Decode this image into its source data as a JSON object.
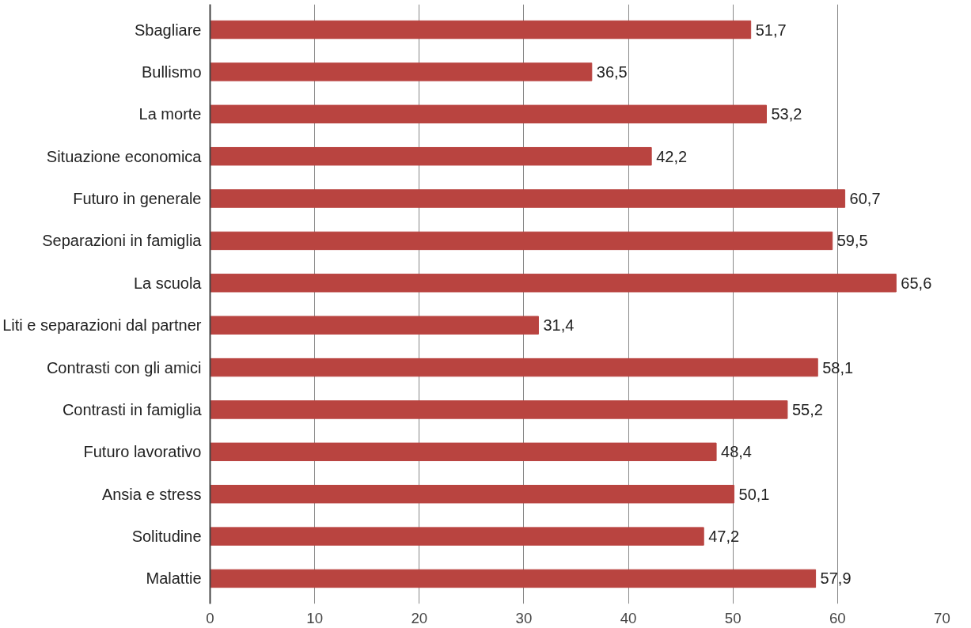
{
  "chart_data": {
    "type": "bar",
    "orientation": "horizontal",
    "categories": [
      "Sbagliare",
      "Bullismo",
      "La morte",
      "Situazione economica",
      "Futuro in generale",
      "Separazioni in famiglia",
      "La scuola",
      "Liti e separazioni dal partner",
      "Contrasti con gli amici",
      "Contrasti in famiglia",
      "Futuro lavorativo",
      "Ansia e stress",
      "Solitudine",
      "Malattie"
    ],
    "values": [
      51.7,
      36.5,
      53.2,
      42.2,
      60.7,
      59.5,
      65.6,
      31.4,
      58.1,
      55.2,
      48.4,
      50.1,
      47.2,
      57.9
    ],
    "value_labels": [
      "51,7",
      "36,5",
      "53,2",
      "42,2",
      "60,7",
      "59,5",
      "65,6",
      "31,4",
      "58,1",
      "55,2",
      "48,4",
      "50,1",
      "47,2",
      "57,9"
    ],
    "color": "#b94440",
    "xlim": [
      0,
      70
    ],
    "xticks": [
      0,
      10,
      20,
      30,
      40,
      50,
      60,
      70
    ],
    "grid": "x"
  }
}
